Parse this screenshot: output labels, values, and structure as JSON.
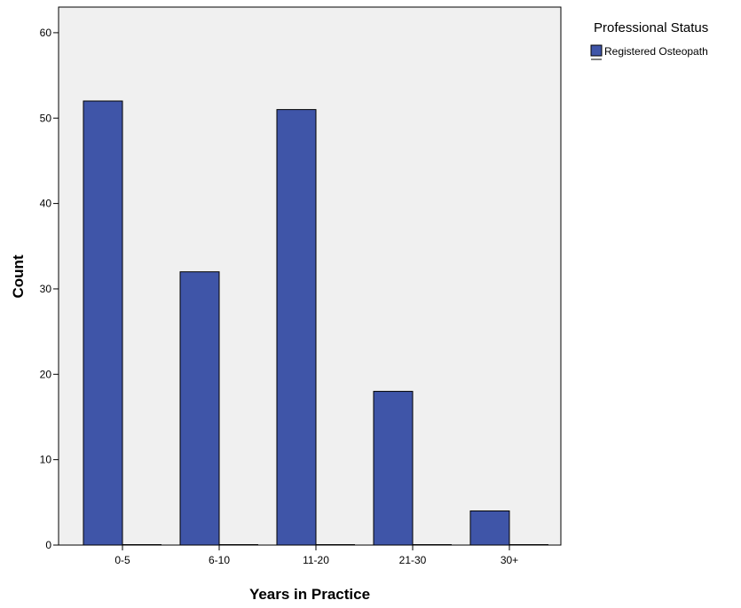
{
  "chart_data": {
    "type": "bar",
    "xlabel": "Years in Practice",
    "ylabel": "Count",
    "categories": [
      "0-5",
      "6-10",
      "11-20",
      "21-30",
      "30+"
    ],
    "series": [
      {
        "name": "Registered Osteopath",
        "values": [
          52,
          32,
          51,
          18,
          4
        ],
        "color": "#3f55a8"
      }
    ],
    "ylim": [
      0,
      63
    ],
    "yticks": [
      0,
      10,
      20,
      30,
      40,
      50,
      60
    ],
    "grid": false,
    "plot_background": "#f0f0f0",
    "legend": {
      "title": "Professional Status",
      "position": "top-right"
    }
  }
}
